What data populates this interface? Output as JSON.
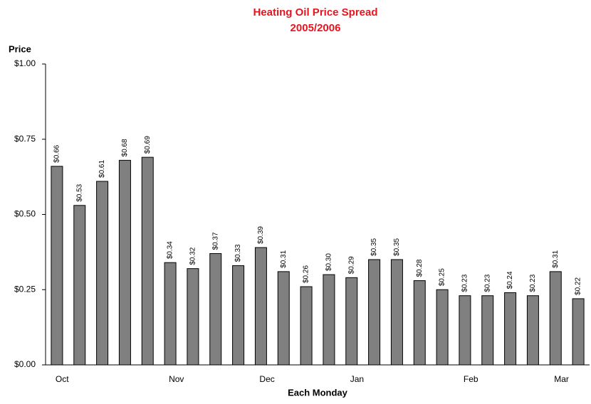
{
  "chart_data": {
    "type": "bar",
    "title": "Heating Oil Price Spread",
    "subtitle": "2005/2006",
    "y_label": "Price",
    "x_label": "Each Monday",
    "categories": [
      "Oct",
      null,
      null,
      null,
      null,
      "Nov",
      null,
      null,
      null,
      "Dec",
      null,
      null,
      null,
      "Jan",
      null,
      null,
      null,
      null,
      "Feb",
      null,
      null,
      null,
      "Mar",
      null
    ],
    "values": [
      0.66,
      0.53,
      0.61,
      0.68,
      0.69,
      0.34,
      0.32,
      0.37,
      0.33,
      0.39,
      0.31,
      0.26,
      0.3,
      0.29,
      0.35,
      0.35,
      0.28,
      0.25,
      0.23,
      0.23,
      0.24,
      0.23,
      0.31,
      0.22
    ],
    "value_labels": [
      "$0.66",
      "$0.53",
      "$0.61",
      "$0.68",
      "$0.69",
      "$0.34",
      "$0.32",
      "$0.37",
      "$0.33",
      "$0.39",
      "$0.31",
      "$0.26",
      "$0.30",
      "$0.29",
      "$0.35",
      "$0.35",
      "$0.28",
      "$0.25",
      "$0.23",
      "$0.23",
      "$0.24",
      "$0.23",
      "$0.31",
      "$0.22"
    ],
    "color": "#808080",
    "ylim": [
      0,
      1
    ],
    "yticks": [
      {
        "value": 0,
        "label": "$0.00"
      },
      {
        "value": 0.25,
        "label": "$0.25"
      },
      {
        "value": 0.5,
        "label": "$0.50"
      },
      {
        "value": 0.75,
        "label": "$0.75"
      },
      {
        "value": 1,
        "label": "$1.00"
      }
    ],
    "grid": false
  }
}
